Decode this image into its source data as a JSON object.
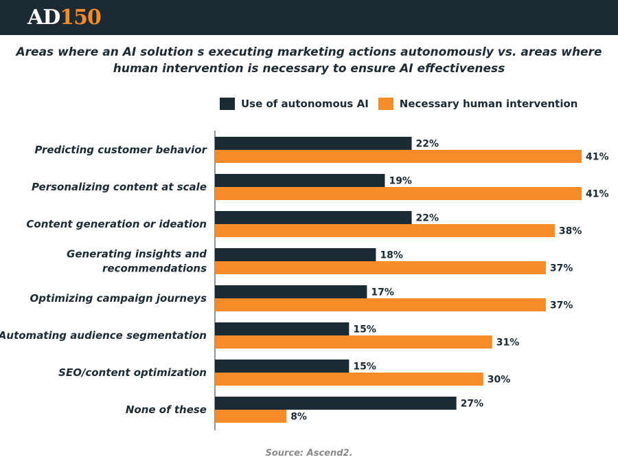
{
  "header": {
    "logo_part1": "AD",
    "logo_part2": "150"
  },
  "footer": {
    "source": "Source: Ascend2."
  },
  "colors": {
    "autonomous": "#1b2a33",
    "human": "#f68b28",
    "header_bg": "#1b2a33"
  },
  "chart_data": {
    "type": "bar",
    "orientation": "horizontal",
    "title": "Areas where an AI solution s executing marketing actions autonomously vs. areas where human intervention is necessary to ensure AI effectiveness",
    "categories": [
      [
        "Predicting customer behavior"
      ],
      [
        "Personalizing content at scale"
      ],
      [
        "Content generation or ideation"
      ],
      [
        "Generating insights and",
        "recommendations"
      ],
      [
        "Optimizing campaign journeys"
      ],
      [
        "Automating audience segmentation"
      ],
      [
        "SEO/content optimization"
      ],
      [
        "None of these"
      ]
    ],
    "series": [
      {
        "name": "Use of autonomous AI",
        "values": [
          22,
          19,
          22,
          18,
          17,
          15,
          15,
          27
        ],
        "labels": [
          "22%",
          "19%",
          "22%",
          "18%",
          "17%",
          "15%",
          "15%",
          "27%"
        ]
      },
      {
        "name": "Necessary human intervention",
        "values": [
          41,
          41,
          38,
          37,
          37,
          31,
          30,
          8
        ],
        "labels": [
          "41%",
          "41%",
          "38%",
          "37%",
          "37%",
          "31%",
          "30%",
          "8%"
        ]
      }
    ],
    "xlim": [
      0,
      41
    ],
    "legend_position": "top-right",
    "grid": false
  }
}
